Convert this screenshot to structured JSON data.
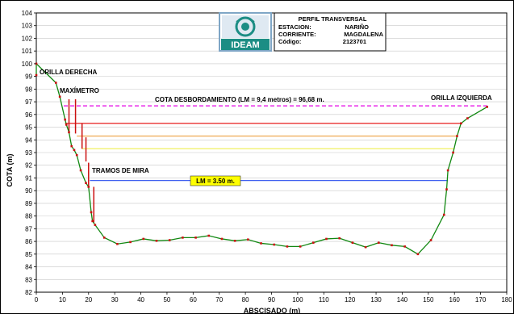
{
  "info_box": {
    "line1": "PERFIL TRANSVERSAL",
    "line2_label": "ESTACION:",
    "line2_value": "NARIÑO",
    "line3_label": "CORRIENTE:",
    "line3_value": "MAGDALENA",
    "line4_label": "Código:",
    "line4_value": "2123701"
  },
  "logo": {
    "text": "IDEAM",
    "colors": {
      "teal": "#1c8d84",
      "frame": "#7fa6c6"
    }
  },
  "colors": {
    "profile": "#118811",
    "marker": "#cc1111",
    "overflow": "#e400e4",
    "red_level": "#e83030",
    "orange_level": "#f0b060",
    "yellow_level": "#f0f060",
    "blue_level": "#4060f0",
    "lm_label_bg": "#ffff00"
  },
  "chart_data": {
    "type": "line",
    "xlabel": "ABSCISADO (m)",
    "ylabel": "COTA (m)",
    "xlim": [
      0,
      180
    ],
    "ylim": [
      82,
      104
    ],
    "x_ticks": [
      0,
      10,
      20,
      30,
      40,
      50,
      60,
      70,
      80,
      90,
      100,
      110,
      120,
      130,
      140,
      150,
      160,
      170,
      180
    ],
    "y_ticks": [
      82,
      83,
      84,
      85,
      86,
      87,
      88,
      89,
      90,
      91,
      92,
      93,
      94,
      95,
      96,
      97,
      98,
      99,
      100,
      101,
      102,
      103,
      104
    ],
    "grid": "horizontal",
    "series": [
      {
        "type": "profile",
        "points": [
          [
            0,
            99.1
          ],
          [
            0,
            100
          ],
          [
            7.5,
            98.5
          ],
          [
            9,
            97.4
          ],
          [
            11,
            95.6
          ],
          [
            11.5,
            95.2
          ],
          [
            12.5,
            94.6
          ],
          [
            13.5,
            93.5
          ],
          [
            14.5,
            93.2
          ],
          [
            15.5,
            92.8
          ],
          [
            17,
            91.6
          ],
          [
            19,
            90.6
          ],
          [
            20,
            90.3
          ],
          [
            21,
            88.3
          ],
          [
            21.5,
            87.6
          ],
          [
            22.5,
            87.3
          ],
          [
            26,
            86.3
          ],
          [
            31,
            85.8
          ],
          [
            36,
            85.95
          ],
          [
            41,
            86.2
          ],
          [
            46,
            86.05
          ],
          [
            51,
            86.1
          ],
          [
            56,
            86.3
          ],
          [
            61,
            86.3
          ],
          [
            66,
            86.45
          ],
          [
            71,
            86.2
          ],
          [
            76,
            86.05
          ],
          [
            81,
            86.15
          ],
          [
            86,
            85.85
          ],
          [
            91,
            85.75
          ],
          [
            96,
            85.6
          ],
          [
            101,
            85.6
          ],
          [
            106,
            85.9
          ],
          [
            111,
            86.2
          ],
          [
            116,
            86.25
          ],
          [
            121,
            85.9
          ],
          [
            126,
            85.55
          ],
          [
            131,
            85.9
          ],
          [
            136,
            85.7
          ],
          [
            141,
            85.6
          ],
          [
            146,
            85.0
          ],
          [
            151,
            86.1
          ],
          [
            156,
            88.1
          ],
          [
            157,
            90.1
          ],
          [
            157.5,
            91.6
          ],
          [
            159.5,
            93.0
          ],
          [
            161,
            94.3
          ],
          [
            162.5,
            95.3
          ],
          [
            165,
            95.7
          ],
          [
            172.5,
            96.6
          ]
        ]
      }
    ],
    "staff_gauges": [
      {
        "x": 12.5,
        "y_bottom": 94.6,
        "y_top": 97.2
      },
      {
        "x": 15,
        "y_bottom": 94.5,
        "y_top": 97.2
      },
      {
        "x": 17.5,
        "y_bottom": 93.3,
        "y_top": 95.3
      },
      {
        "x": 19,
        "y_bottom": 92.3,
        "y_top": 94.2
      },
      {
        "x": 20,
        "y_bottom": 90.3,
        "y_top": 92.2
      },
      {
        "x": 22,
        "y_bottom": 87.5,
        "y_top": 90.3
      }
    ],
    "level_lines": [
      {
        "name": "overflow",
        "y": 96.68,
        "x_start": 10.5,
        "x_end": 172.5,
        "dashed": true
      },
      {
        "name": "red",
        "y": 95.3,
        "x_start": 11,
        "x_end": 163,
        "dashed": false
      },
      {
        "name": "orange",
        "y": 94.3,
        "x_start": 15.5,
        "x_end": 161,
        "dashed": false
      },
      {
        "name": "yellow",
        "y": 93.3,
        "x_start": 17.5,
        "x_end": 160,
        "dashed": false
      },
      {
        "name": "blue",
        "y": 90.8,
        "x_start": 20.5,
        "x_end": 157.5,
        "dashed": false
      }
    ],
    "annotations": {
      "right_bank": "ORILLA DERECHA",
      "max_gauge": "MAXÍMETRO",
      "overflow_level": "COTA DESBORDAMIENTO (LM = 9,4 metros) = 96,68  m.",
      "left_bank": "ORILLA IZQUIERDA",
      "staff_sections": "TRAMOS DE MIRA",
      "lm_value": "LM = 3.50 m."
    }
  }
}
